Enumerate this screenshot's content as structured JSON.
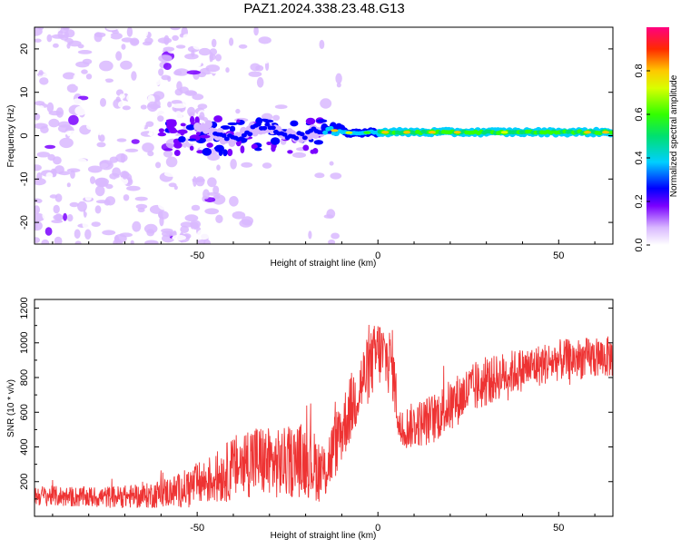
{
  "title": "PAZ1.2024.338.23.48.G13",
  "chart_data": [
    {
      "type": "heatmap",
      "title": "PAZ1.2024.338.23.48.G13",
      "xlabel": "Height of straight line (km)",
      "ylabel": "Frequency (Hz)",
      "xlim": [
        -95,
        65
      ],
      "ylim": [
        -25,
        25
      ],
      "xticks": [
        -50,
        0,
        50
      ],
      "yticks": [
        -20,
        -10,
        0,
        10,
        20
      ],
      "colorbar": {
        "label": "Normalized spectral amplitude",
        "range": [
          0,
          1
        ],
        "ticks": [
          0.0,
          0.2,
          0.4,
          0.6,
          0.8
        ],
        "colormap": "rainbow"
      },
      "description_of_signal": [
        {
          "x_range": [
            -95,
            -55
          ],
          "frequency_spread_hz": [
            -25,
            25
          ],
          "amplitude_level": 0.15
        },
        {
          "x_range": [
            -55,
            -15
          ],
          "frequency_center_hz": 1.0,
          "amplitude_level": 0.25
        },
        {
          "x_range": [
            -15,
            65
          ],
          "frequency_center_hz": 0.5,
          "amplitude_level": 0.8
        }
      ]
    },
    {
      "type": "line",
      "xlabel": "Height of straight line (km)",
      "ylabel": "SNR (10 * v/v)",
      "xlim": [
        -95,
        65
      ],
      "ylim": [
        0,
        1250
      ],
      "xticks": [
        -50,
        0,
        50
      ],
      "yticks": [
        200,
        400,
        600,
        800,
        1000,
        1200
      ],
      "color": "#ee3333",
      "envelope": [
        {
          "x": -95,
          "mean": 120,
          "spread": 60
        },
        {
          "x": -80,
          "mean": 110,
          "spread": 60
        },
        {
          "x": -65,
          "mean": 115,
          "spread": 70
        },
        {
          "x": -55,
          "mean": 150,
          "spread": 100
        },
        {
          "x": -45,
          "mean": 220,
          "spread": 150
        },
        {
          "x": -35,
          "mean": 330,
          "spread": 220
        },
        {
          "x": -28,
          "mean": 300,
          "spread": 200
        },
        {
          "x": -20,
          "mean": 330,
          "spread": 220
        },
        {
          "x": -15,
          "mean": 250,
          "spread": 180
        },
        {
          "x": -10,
          "mean": 500,
          "spread": 200
        },
        {
          "x": -5,
          "mean": 750,
          "spread": 200
        },
        {
          "x": 0,
          "mean": 950,
          "spread": 200
        },
        {
          "x": 4,
          "mean": 880,
          "spread": 200
        },
        {
          "x": 6,
          "mean": 500,
          "spread": 120
        },
        {
          "x": 15,
          "mean": 560,
          "spread": 150
        },
        {
          "x": 25,
          "mean": 720,
          "spread": 150
        },
        {
          "x": 35,
          "mean": 820,
          "spread": 130
        },
        {
          "x": 50,
          "mean": 900,
          "spread": 120
        },
        {
          "x": 65,
          "mean": 920,
          "spread": 120
        }
      ]
    }
  ]
}
